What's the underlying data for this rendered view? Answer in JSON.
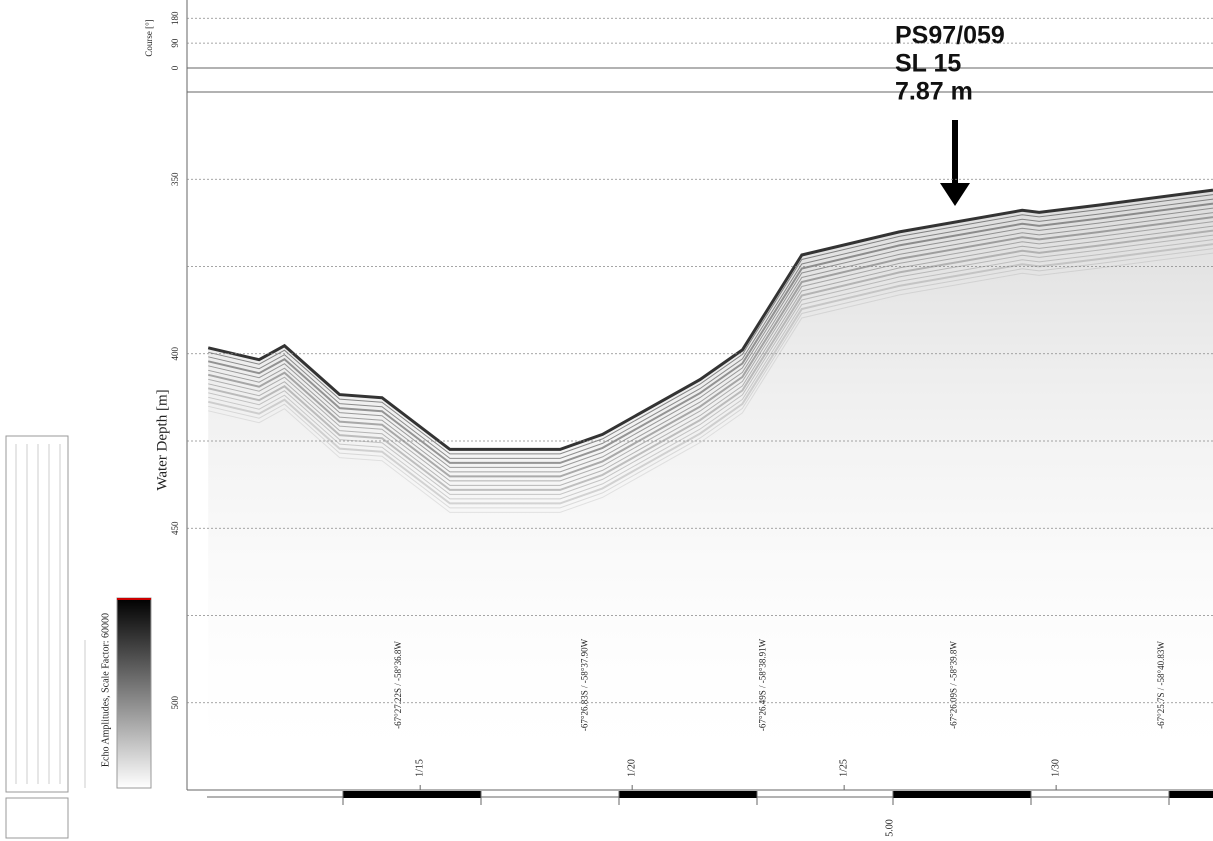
{
  "chart_data": {
    "type": "line",
    "y_label": "Water Depth [m]",
    "course_label": "Course [°]",
    "course_ylim": [
      0,
      210
    ],
    "course_ticks": [
      0,
      90,
      180
    ],
    "ylim": [
      525,
      325
    ],
    "yticks": [
      350,
      400,
      450,
      500
    ],
    "minor_gridlines": [
      375,
      425,
      475
    ],
    "grid": true,
    "xlim": [
      69.5,
      93.7
    ],
    "xticks": [
      {
        "value": 75,
        "label": "1/15"
      },
      {
        "value": 80,
        "label": "1/20"
      },
      {
        "value": 85,
        "label": "1/25"
      },
      {
        "value": 90,
        "label": "1/30"
      }
    ],
    "x": [
      70.0,
      71.2,
      71.8,
      73.1,
      74.1,
      75.7,
      78.3,
      79.3,
      81.6,
      82.6,
      84.0,
      86.3,
      89.2,
      89.6,
      91.0,
      93.7
    ],
    "series": [
      {
        "name": "Seafloor",
        "color": "#333333",
        "values": [
          398.3,
          401.7,
          397.7,
          411.7,
          412.6,
          427.4,
          427.4,
          423.1,
          407.4,
          398.9,
          371.7,
          365.1,
          358.9,
          359.5,
          357.4,
          353.1
        ]
      }
    ],
    "position_labels": [
      {
        "x": 74.5,
        "label": "-67°27.22S / -58°36.8W"
      },
      {
        "x": 78.9,
        "label": "-67°26.83S / -58°37.90W"
      },
      {
        "x": 83.1,
        "label": "-67°26.49S / -58°38.91W"
      },
      {
        "x": 87.6,
        "label": "-67°26.09S / -58°39.8W"
      },
      {
        "x": 92.5,
        "label": "-67°25.7S / -58°40.83W"
      }
    ],
    "annotation": {
      "lines": [
        "PS97/059",
        "SL 15",
        "7.87 m"
      ],
      "x": 87.5
    },
    "colorbar_label": "Echo Amplitudes, Scale Factor: 60000",
    "distance_label": "5.00"
  }
}
